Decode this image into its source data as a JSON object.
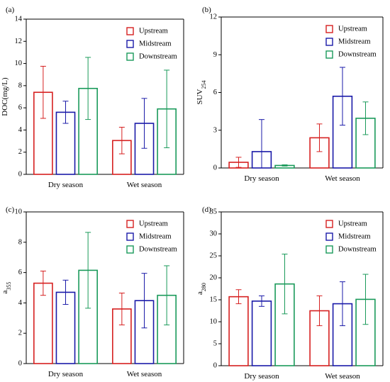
{
  "colors": {
    "Upstream": "#d62020",
    "Midstream": "#1a1aa8",
    "Downstream": "#1a9a5a"
  },
  "chart_data": [
    {
      "panel": "(a)",
      "type": "bar",
      "ylabel": "DOC(mg/L)",
      "ylabel_sub": "",
      "ylim": [
        0,
        14
      ],
      "yticks": [
        0,
        2,
        4,
        6,
        8,
        10,
        12,
        14
      ],
      "categories": [
        "Dry season",
        "Wet season"
      ],
      "legend": "top-right",
      "series": [
        {
          "name": "Upstream",
          "values": [
            7.4,
            3.05
          ],
          "err": [
            2.35,
            1.2
          ]
        },
        {
          "name": "Midstream",
          "values": [
            5.6,
            4.6
          ],
          "err": [
            1.0,
            2.25
          ]
        },
        {
          "name": "Downstream",
          "values": [
            7.75,
            5.9
          ],
          "err": [
            2.8,
            3.5
          ]
        }
      ]
    },
    {
      "panel": "(b)",
      "type": "bar",
      "ylabel": "SUV",
      "ylabel_sub": "254",
      "ylim": [
        0,
        12
      ],
      "yticks": [
        0,
        3,
        6,
        9,
        12
      ],
      "categories": [
        "Dry season",
        "Wet season"
      ],
      "legend": "top-right",
      "series": [
        {
          "name": "Upstream",
          "values": [
            0.45,
            2.4
          ],
          "err": [
            0.4,
            1.1
          ]
        },
        {
          "name": "Midstream",
          "values": [
            1.3,
            5.7
          ],
          "err": [
            2.55,
            2.3
          ]
        },
        {
          "name": "Downstream",
          "values": [
            0.2,
            3.95
          ],
          "err": [
            0.05,
            1.3
          ]
        }
      ]
    },
    {
      "panel": "(c)",
      "type": "bar",
      "ylabel": "a",
      "ylabel_sub": "355",
      "ylim": [
        0,
        10
      ],
      "yticks": [
        0,
        2,
        4,
        6,
        8,
        10
      ],
      "categories": [
        "Dry season",
        "Wet season"
      ],
      "legend": "top-right",
      "series": [
        {
          "name": "Upstream",
          "values": [
            5.3,
            3.6
          ],
          "err": [
            0.8,
            1.05
          ]
        },
        {
          "name": "Midstream",
          "values": [
            4.7,
            4.15
          ],
          "err": [
            0.8,
            1.8
          ]
        },
        {
          "name": "Downstream",
          "values": [
            6.15,
            4.5
          ],
          "err": [
            2.5,
            1.95
          ]
        }
      ]
    },
    {
      "panel": "(d)",
      "type": "bar",
      "ylabel": "a",
      "ylabel_sub": "280",
      "ylim": [
        0,
        35
      ],
      "yticks": [
        0,
        5,
        10,
        15,
        20,
        25,
        30,
        35
      ],
      "categories": [
        "Dry season",
        "Wet season"
      ],
      "legend": "top-right",
      "series": [
        {
          "name": "Upstream",
          "values": [
            15.7,
            12.5
          ],
          "err": [
            1.6,
            3.4
          ]
        },
        {
          "name": "Midstream",
          "values": [
            14.7,
            14.1
          ],
          "err": [
            1.2,
            5.0
          ]
        },
        {
          "name": "Downstream",
          "values": [
            18.6,
            15.1
          ],
          "err": [
            6.8,
            5.7
          ]
        }
      ]
    }
  ]
}
